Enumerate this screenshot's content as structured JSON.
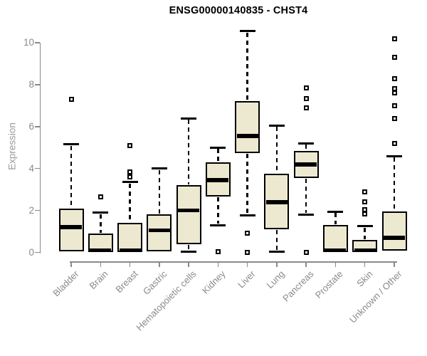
{
  "colors": {
    "background": "#FFFFFF",
    "box_fill": "#EDE8D0",
    "box_stroke": "#000000",
    "axis": "#8A8A8A",
    "tick_label": "#8A8A8A",
    "ylabel": "#9A9A9A",
    "title": "#000000"
  },
  "chart_data": {
    "type": "boxplot",
    "title": "ENSG00000140835 - CHST4",
    "ylabel": "Expression",
    "xlabel": "",
    "ylim": [
      0,
      10.6
    ],
    "yticks": [
      0,
      2,
      4,
      6,
      8,
      10
    ],
    "grid": false,
    "legend": "none",
    "categories": [
      "Bladder",
      "Brain",
      "Breast",
      "Gastric",
      "Hematopoietic cells",
      "Kidney",
      "Liver",
      "Lung",
      "Pancreas",
      "Prostate",
      "Skin",
      "Unknown / Other"
    ],
    "series": [
      {
        "name": "Bladder",
        "whisker_low": 0.05,
        "q1": 0.05,
        "median": 1.2,
        "q3": 2.1,
        "whisker_high": 5.15,
        "outliers": [
          7.3
        ]
      },
      {
        "name": "Brain",
        "whisker_low": 0.02,
        "q1": 0.02,
        "median": 0.1,
        "q3": 0.9,
        "whisker_high": 1.9,
        "outliers": [
          2.65
        ]
      },
      {
        "name": "Breast",
        "whisker_low": 0.02,
        "q1": 0.02,
        "median": 0.1,
        "q3": 1.4,
        "whisker_high": 3.35,
        "outliers": [
          5.1,
          3.85,
          3.6
        ]
      },
      {
        "name": "Gastric",
        "whisker_low": 0.05,
        "q1": 0.05,
        "median": 1.05,
        "q3": 1.8,
        "whisker_high": 4.0,
        "outliers": []
      },
      {
        "name": "Hematopoietic cells",
        "whisker_low": 0.05,
        "q1": 0.4,
        "median": 2.0,
        "q3": 3.2,
        "whisker_high": 6.4,
        "outliers": []
      },
      {
        "name": "Kidney",
        "whisker_low": 1.3,
        "q1": 2.65,
        "median": 3.45,
        "q3": 4.3,
        "whisker_high": 5.0,
        "outliers": [
          0.02
        ]
      },
      {
        "name": "Liver",
        "whisker_low": 1.75,
        "q1": 4.75,
        "median": 5.55,
        "q3": 7.2,
        "whisker_high": 10.55,
        "outliers": [
          0.9,
          0.0
        ]
      },
      {
        "name": "Lung",
        "whisker_low": 0.02,
        "q1": 1.1,
        "median": 2.4,
        "q3": 3.75,
        "whisker_high": 6.05,
        "outliers": []
      },
      {
        "name": "Pancreas",
        "whisker_low": 1.8,
        "q1": 3.55,
        "median": 4.2,
        "q3": 4.85,
        "whisker_high": 5.2,
        "outliers": [
          7.85,
          7.35,
          6.9,
          0.0
        ]
      },
      {
        "name": "Prostate",
        "whisker_low": 0.02,
        "q1": 0.02,
        "median": 0.1,
        "q3": 1.3,
        "whisker_high": 1.95,
        "outliers": []
      },
      {
        "name": "Skin",
        "whisker_low": 0.02,
        "q1": 0.02,
        "median": 0.1,
        "q3": 0.6,
        "whisker_high": 1.25,
        "outliers": [
          2.9,
          2.4,
          2.05,
          1.85
        ]
      },
      {
        "name": "Unknown / Other",
        "whisker_low": 0.1,
        "q1": 0.1,
        "median": 0.7,
        "q3": 1.95,
        "whisker_high": 4.6,
        "outliers": [
          10.2,
          9.3,
          8.3,
          7.8,
          7.6,
          7.0,
          6.4,
          5.2
        ]
      }
    ]
  }
}
